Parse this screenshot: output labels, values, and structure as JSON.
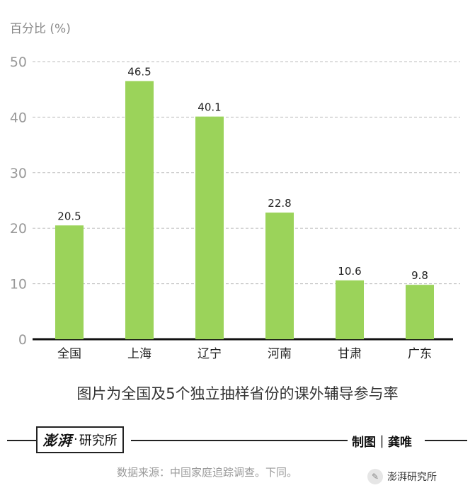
{
  "chart_data": {
    "type": "bar",
    "ylabel": "百分比 (%)",
    "xlabel": "",
    "title": "",
    "ylim": [
      0,
      50
    ],
    "yticks": [
      0,
      10,
      20,
      30,
      40,
      50
    ],
    "grid": true,
    "categories": [
      "全国",
      "上海",
      "辽宁",
      "河南",
      "甘肃",
      "广东"
    ],
    "values": [
      20.5,
      46.5,
      40.1,
      22.8,
      10.6,
      9.8
    ],
    "value_labels": [
      "20.5",
      "46.5",
      "40.1",
      "22.8",
      "10.6",
      "9.8"
    ],
    "bar_color": "#9bd35a"
  },
  "caption": "图片为全国及5个独立抽样省份的课外辅导参与率",
  "footer": {
    "logo_brush": "澎湃",
    "logo_dot": "·",
    "logo_text": "研究所",
    "credit": "制图｜龚唯",
    "source": "数据来源：中国家庭追踪调查。下同。",
    "wechat_label": "澎湃研究所"
  },
  "colors": {
    "axis": "#111111",
    "grid": "#bdbdbd",
    "tick": "#999999"
  }
}
